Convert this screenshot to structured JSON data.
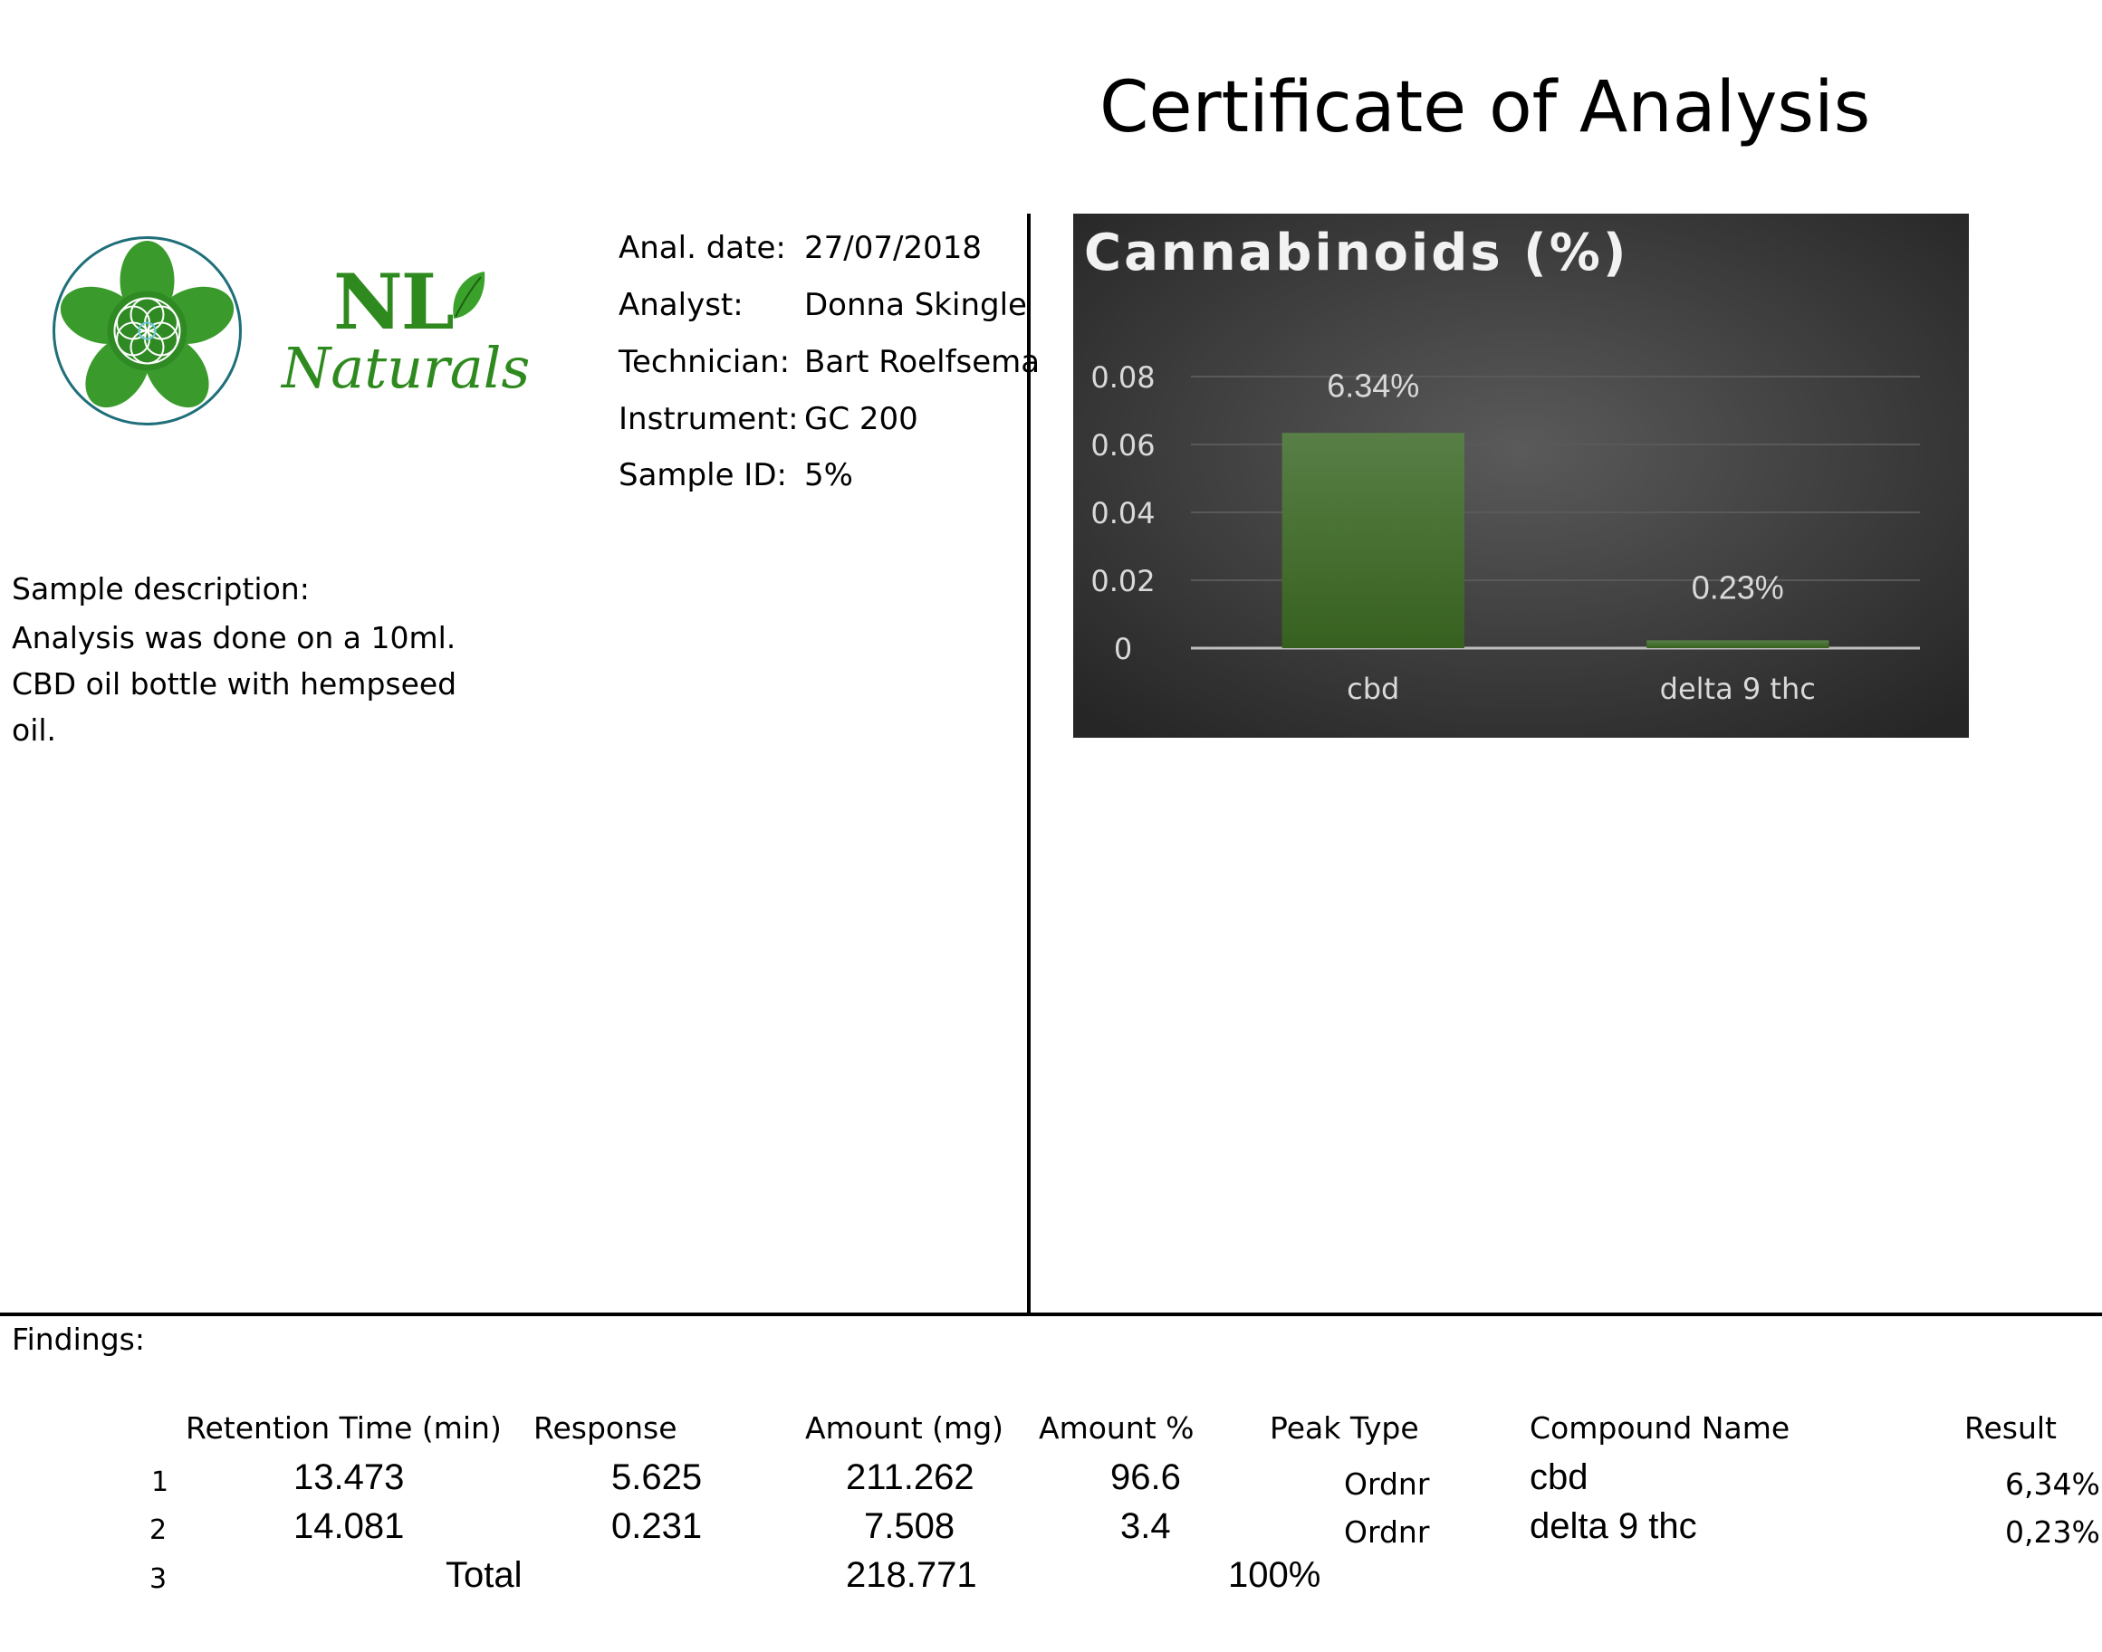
{
  "title": "Certificate of Analysis",
  "brand": {
    "logo_line1": "NL",
    "logo_line2": "Naturals",
    "primary_color": "#2e7d1e"
  },
  "meta": [
    {
      "label": "Anal. date:",
      "value": "27/07/2018"
    },
    {
      "label": "Analyst:",
      "value": "Donna Skingle"
    },
    {
      "label": "Technician:",
      "value": "Bart Roelfsema"
    },
    {
      "label": "Instrument:",
      "value": "GC 200"
    },
    {
      "label": "Sample ID:",
      "value": "5%"
    }
  ],
  "description": {
    "heading": "Sample description:",
    "lines": [
      "Analysis was done on a 10ml.",
      "CBD oil bottle with hempseed",
      "oil."
    ]
  },
  "findings": {
    "label": "Findings:",
    "headers": [
      "Retention Time (min)",
      "Response",
      "Amount (mg)",
      "Amount %",
      "Peak Type",
      "Compound Name",
      "Result"
    ],
    "rows": [
      {
        "n": "1",
        "rt": "13.473",
        "response": "5.625",
        "amount_mg": "211.262",
        "amount_pct": "96.6",
        "peak": "Ordnr",
        "compound": "cbd",
        "result": "6,34%"
      },
      {
        "n": "2",
        "rt": "14.081",
        "response": "0.231",
        "amount_mg": "7.508",
        "amount_pct": "3.4",
        "peak": "Ordnr",
        "compound": "delta 9 thc",
        "result": "0,23%"
      }
    ],
    "total": {
      "n": "3",
      "label": "Total",
      "amount_mg": "218.771",
      "amount_pct": "100%"
    }
  },
  "chart_data": {
    "type": "bar",
    "title": "Cannabinoids (%)",
    "categories": [
      "cbd",
      "delta 9 thc"
    ],
    "values": [
      0.0634,
      0.0023
    ],
    "data_labels": [
      "6.34%",
      "0.23%"
    ],
    "ylim": [
      0,
      0.08
    ],
    "yticks": [
      "0",
      "0.02",
      "0.04",
      "0.06",
      "0.08"
    ],
    "grid": true,
    "bar_color": "#3d6b25",
    "background": "#2f2f2f"
  }
}
